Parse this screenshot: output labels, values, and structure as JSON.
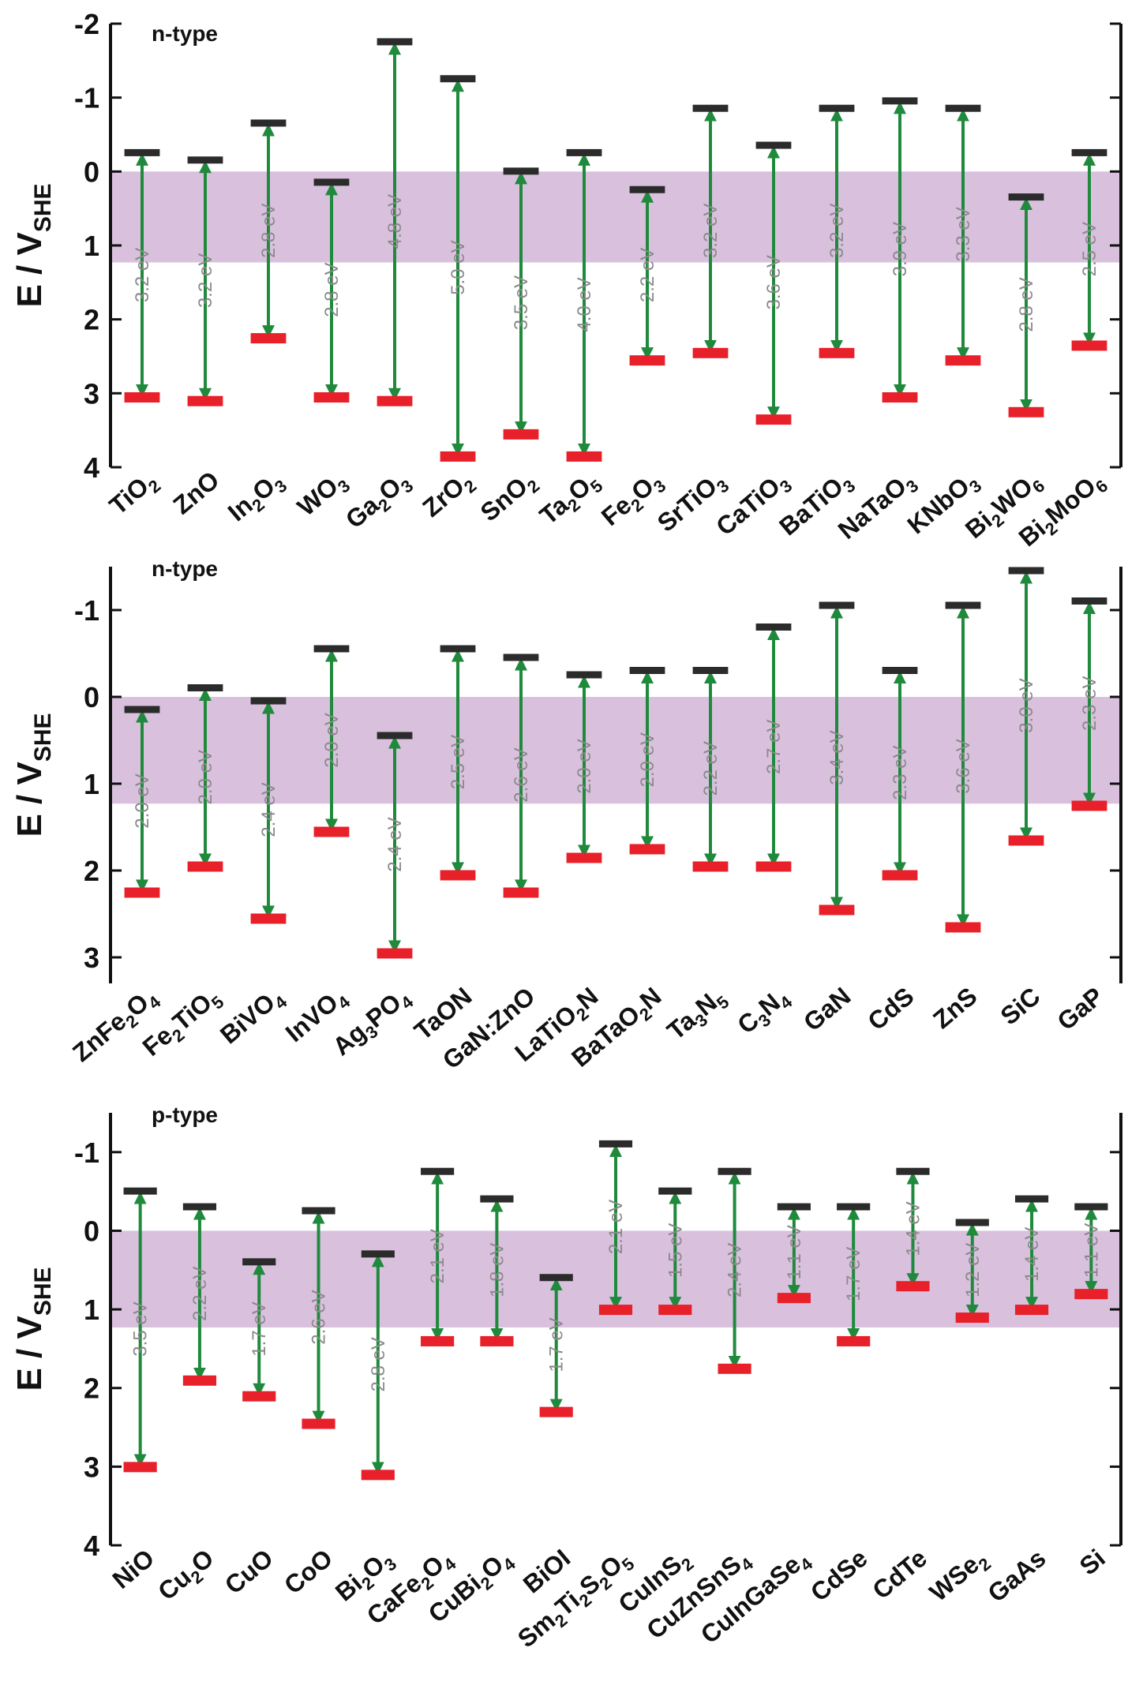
{
  "colors": {
    "cb": "#2b2b2b",
    "vb": "#e8202a",
    "arrow": "#1f8a3c",
    "band": "#cfb2d6",
    "gap_text": "#8a8a8a"
  },
  "chart_data": [
    {
      "type": "band-diagram",
      "panel_label": "n-type",
      "ylabel": "E / V",
      "ylabel_sub": "SHE",
      "ylim": [
        4,
        -2
      ],
      "yticks": [
        4,
        3,
        2,
        1,
        0,
        -1,
        -2
      ],
      "yticklabels": [
        "4",
        "3",
        "2",
        "1",
        "0",
        "-1",
        "-2"
      ],
      "shaded_band": [
        0,
        1.23
      ],
      "materials": [
        {
          "name": "TiO",
          "sub": "2",
          "cb": -0.25,
          "vb": 3.05,
          "gap": "3.2 eV"
        },
        {
          "name": "ZnO",
          "cb": -0.15,
          "vb": 3.1,
          "gap": "3.2 eV"
        },
        {
          "name": "In",
          "sub": "2",
          "rest": "O",
          "sub2": "3",
          "cb": -0.65,
          "vb": 2.25,
          "gap": "2.8 eV"
        },
        {
          "name": "WO",
          "sub": "3",
          "cb": 0.15,
          "vb": 3.05,
          "gap": "2.8 eV"
        },
        {
          "name": "Ga",
          "sub": "2",
          "rest": "O",
          "sub2": "3",
          "cb": -1.75,
          "vb": 3.1,
          "gap": "4.8 eV"
        },
        {
          "name": "ZrO",
          "sub": "2",
          "cb": -1.25,
          "vb": 3.85,
          "gap": "5.0 eV"
        },
        {
          "name": "SnO",
          "sub": "2",
          "cb": 0.0,
          "vb": 3.55,
          "gap": "3.5 eV"
        },
        {
          "name": "Ta",
          "sub": "2",
          "rest": "O",
          "sub2": "5",
          "cb": -0.25,
          "vb": 3.85,
          "gap": "4.0 eV"
        },
        {
          "name": "Fe",
          "sub": "2",
          "rest": "O",
          "sub2": "3",
          "cb": 0.25,
          "vb": 2.55,
          "gap": "2.2 eV"
        },
        {
          "name": "SrTiO",
          "sub": "3",
          "cb": -0.85,
          "vb": 2.45,
          "gap": "3.2 eV"
        },
        {
          "name": "CaTiO",
          "sub": "3",
          "cb": -0.35,
          "vb": 3.35,
          "gap": "3.6 eV"
        },
        {
          "name": "BaTiO",
          "sub": "3",
          "cb": -0.85,
          "vb": 2.45,
          "gap": "3.2 eV"
        },
        {
          "name": "NaTaO",
          "sub": "3",
          "cb": -0.95,
          "vb": 3.05,
          "gap": "3.9 eV"
        },
        {
          "name": "KNbO",
          "sub": "3",
          "cb": -0.85,
          "vb": 2.55,
          "gap": "3.3 eV"
        },
        {
          "name": "Bi",
          "sub": "2",
          "rest": "WO",
          "sub2": "6",
          "cb": 0.35,
          "vb": 3.25,
          "gap": "2.8 eV"
        },
        {
          "name": "Bi",
          "sub": "2",
          "rest": "MoO",
          "sub2": "6",
          "cb": -0.25,
          "vb": 2.35,
          "gap": "2.5 eV"
        }
      ]
    },
    {
      "type": "band-diagram",
      "panel_label": "n-type",
      "ylabel": "E / V",
      "ylabel_sub": "SHE",
      "ylim": [
        3.3,
        -1.5
      ],
      "yticks": [
        3,
        2,
        1,
        0,
        -1
      ],
      "yticklabels": [
        "3",
        "2",
        "1",
        "0",
        "-1"
      ],
      "shaded_band": [
        0,
        1.23
      ],
      "materials": [
        {
          "name": "ZnFe",
          "sub": "2",
          "rest": "O",
          "sub2": "4",
          "cb": 0.15,
          "vb": 2.25,
          "gap": "2.0 eV"
        },
        {
          "name": "Fe",
          "sub": "2",
          "rest": "TiO",
          "sub2": "5",
          "cb": -0.1,
          "vb": 1.95,
          "gap": "2.0 eV"
        },
        {
          "name": "BiVO",
          "sub": "4",
          "cb": 0.05,
          "vb": 2.55,
          "gap": "2.4 eV"
        },
        {
          "name": "InVO",
          "sub": "4",
          "cb": -0.55,
          "vb": 1.55,
          "gap": "2.0 eV"
        },
        {
          "name": "Ag",
          "sub": "3",
          "rest": "PO",
          "sub2": "4",
          "cb": 0.45,
          "vb": 2.95,
          "gap": "2.4 eV"
        },
        {
          "name": "TaON",
          "cb": -0.55,
          "vb": 2.05,
          "gap": "2.5 eV"
        },
        {
          "name": "GaN:ZnO",
          "cb": -0.45,
          "vb": 2.25,
          "gap": "2.6 eV"
        },
        {
          "name": "LaTiO",
          "sub": "2",
          "rest": "N",
          "cb": -0.25,
          "vb": 1.85,
          "gap": "2.0 eV"
        },
        {
          "name": "BaTaO",
          "sub": "2",
          "rest": "N",
          "cb": -0.3,
          "vb": 1.75,
          "gap": "2.0 eV"
        },
        {
          "name": "Ta",
          "sub": "3",
          "rest": "N",
          "sub2": "5",
          "cb": -0.3,
          "vb": 1.95,
          "gap": "2.2 eV"
        },
        {
          "name": "C",
          "sub": "3",
          "rest": "N",
          "sub2": "4",
          "cb": -0.8,
          "vb": 1.95,
          "gap": "2.7 eV"
        },
        {
          "name": "GaN",
          "cb": -1.05,
          "vb": 2.45,
          "gap": "3.4 eV"
        },
        {
          "name": "CdS",
          "cb": -0.3,
          "vb": 2.05,
          "gap": "2.3 eV"
        },
        {
          "name": "ZnS",
          "cb": -1.05,
          "vb": 2.65,
          "gap": "3.6 eV"
        },
        {
          "name": "SiC",
          "cb": -1.45,
          "vb": 1.65,
          "gap": "3.0 eV"
        },
        {
          "name": "GaP",
          "cb": -1.1,
          "vb": 1.25,
          "gap": "2.3 eV"
        }
      ]
    },
    {
      "type": "band-diagram",
      "panel_label": "p-type",
      "ylabel": "E / V",
      "ylabel_sub": "SHE",
      "ylim": [
        4,
        -1.5
      ],
      "yticks": [
        4,
        3,
        2,
        1,
        0,
        -1
      ],
      "yticklabels": [
        "4",
        "3",
        "2",
        "1",
        "0",
        "-1"
      ],
      "shaded_band": [
        0,
        1.23
      ],
      "materials": [
        {
          "name": "NiO",
          "cb": -0.5,
          "vb": 3.0,
          "gap": "3.5 eV"
        },
        {
          "name": "Cu",
          "sub": "2",
          "rest": "O",
          "cb": -0.3,
          "vb": 1.9,
          "gap": "2.2 eV"
        },
        {
          "name": "CuO",
          "cb": 0.4,
          "vb": 2.1,
          "gap": "1.7 eV"
        },
        {
          "name": "CoO",
          "cb": -0.25,
          "vb": 2.45,
          "gap": "2.6 eV"
        },
        {
          "name": "Bi",
          "sub": "2",
          "rest": "O",
          "sub2": "3",
          "cb": 0.3,
          "vb": 3.1,
          "gap": "2.8 eV"
        },
        {
          "name": "CaFe",
          "sub": "2",
          "rest": "O",
          "sub2": "4",
          "cb": -0.75,
          "vb": 1.4,
          "gap": "2.1 eV"
        },
        {
          "name": "CuBi",
          "sub": "2",
          "rest": "O",
          "sub2": "4",
          "cb": -0.4,
          "vb": 1.4,
          "gap": "1.8 eV"
        },
        {
          "name": "BiOI",
          "cb": 0.6,
          "vb": 2.3,
          "gap": "1.7 eV"
        },
        {
          "name": "Sm",
          "sub": "2",
          "rest": "Ti",
          "sub2": "2",
          "rest2": "S",
          "sub3": "2",
          "rest3": "O",
          "sub4": "5",
          "cb": -1.1,
          "vb": 1.0,
          "gap": "2.1 eV"
        },
        {
          "name": "CuInS",
          "sub": "2",
          "cb": -0.5,
          "vb": 1.0,
          "gap": "1.5 eV"
        },
        {
          "name": "CuZnSnS",
          "sub": "4",
          "cb": -0.75,
          "vb": 1.75,
          "gap": "2.4 eV"
        },
        {
          "name": "CuInGaSe",
          "sub": "4",
          "cb": -0.3,
          "vb": 0.85,
          "gap": "1.1 eV"
        },
        {
          "name": "CdSe",
          "cb": -0.3,
          "vb": 1.4,
          "gap": "1.7 eV"
        },
        {
          "name": "CdTe",
          "cb": -0.75,
          "vb": 0.7,
          "gap": "1.4 eV"
        },
        {
          "name": "WSe",
          "sub": "2",
          "cb": -0.1,
          "vb": 1.1,
          "gap": "1.2 eV"
        },
        {
          "name": "GaAs",
          "cb": -0.4,
          "vb": 1.0,
          "gap": "1.4 eV"
        },
        {
          "name": "Si",
          "cb": -0.3,
          "vb": 0.8,
          "gap": "1.1 eV"
        }
      ]
    }
  ]
}
